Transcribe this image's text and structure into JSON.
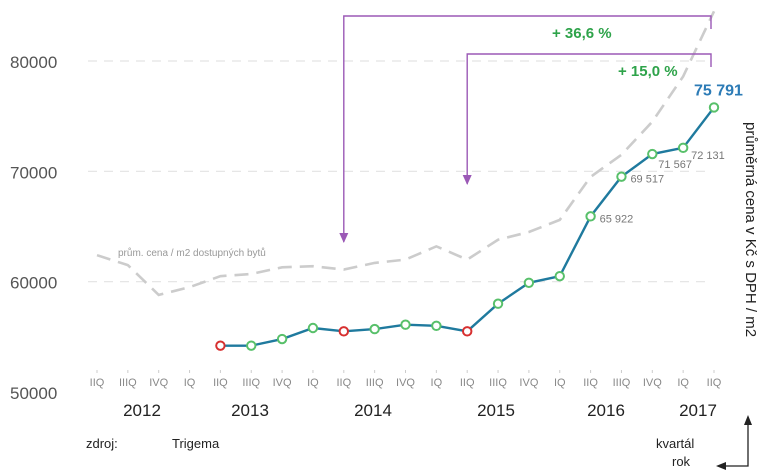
{
  "chart_data": {
    "type": "line",
    "y_ticks": [
      "80000",
      "70000",
      "60000",
      "50000"
    ],
    "ylim": [
      50000,
      80000
    ],
    "quarter_labels": [
      "IIQ",
      "IIIQ",
      "IVQ",
      "IQ",
      "IIQ",
      "IIIQ",
      "IVQ",
      "IQ",
      "IIQ",
      "IIIQ",
      "IVQ",
      "IQ",
      "IIQ",
      "IIIQ",
      "IVQ",
      "IQ",
      "IIQ",
      "IIIQ",
      "IVQ",
      "IQ",
      "IIQ"
    ],
    "year_labels": [
      "2012",
      "2013",
      "2014",
      "2015",
      "2016",
      "2017"
    ],
    "ylabel": "průměrná cena v Kč s DPH / m2",
    "x_axis_caption_quarter": "kvartál",
    "x_axis_caption_year": "rok",
    "series": [
      {
        "name": "",
        "color": "#1f7a9e",
        "x_start_index": 4,
        "values": [
          54200,
          54200,
          54800,
          55800,
          55500,
          55700,
          56100,
          56000,
          55500,
          58000,
          59900,
          60500,
          65922,
          69517,
          71567,
          72131,
          75791
        ],
        "red_point_indices": [
          0,
          4,
          8
        ]
      },
      {
        "name": "prům. cena / m2 dostupných bytů",
        "style": "dashed",
        "color": "#cccccc",
        "x_start_index": 0,
        "values": [
          62400,
          61500,
          58800,
          59500,
          60500,
          60700,
          61300,
          61400,
          61100,
          61700,
          62000,
          63200,
          62000,
          63800,
          64500,
          65600,
          69500,
          71500,
          74500,
          78600,
          84500
        ]
      }
    ],
    "data_labels": [
      {
        "point_index": 12,
        "text": "65 922"
      },
      {
        "point_index": 13,
        "text": "69 517"
      },
      {
        "point_index": 14,
        "text": "71 567"
      },
      {
        "point_index": 15,
        "text": "72 131"
      }
    ],
    "highlight_label": {
      "point_index": 16,
      "text": "75 791",
      "color": "#2c7bb6"
    },
    "annotations": [
      {
        "text": "+ 36,6 %",
        "from_x_index": 8,
        "color": "#2ea34a"
      },
      {
        "text": "+ 15,0 %",
        "from_x_index": 12,
        "color": "#2ea34a"
      }
    ],
    "bracket_color": "#9b59b6",
    "dashed_series_label": "prům. cena / m2 dostupných bytů",
    "source_label": "zdroj:",
    "source_value": "Trigema",
    "gridlines": true
  }
}
